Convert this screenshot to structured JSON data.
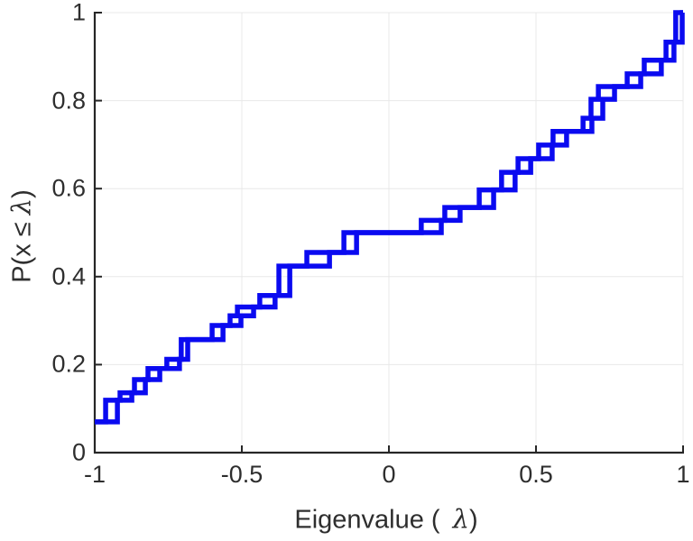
{
  "chart_data": {
    "type": "line",
    "subtype": "empirical-cdf-staircase",
    "title": "",
    "xlabel_prefix": "Eigenvalue (",
    "xlabel_symbol": "λ",
    "xlabel_suffix": ")",
    "ylabel_prefix": "P(x ≤ ",
    "ylabel_symbol": "λ",
    "ylabel_suffix": ")",
    "xlim": [
      -1,
      1
    ],
    "ylim": [
      0,
      1
    ],
    "grid": true,
    "legend_position": "none",
    "x_ticks": [
      {
        "value": -1,
        "label": "-1"
      },
      {
        "value": -0.5,
        "label": "-0.5"
      },
      {
        "value": 0,
        "label": "0"
      },
      {
        "value": 0.5,
        "label": "0.5"
      },
      {
        "value": 1,
        "label": "1"
      }
    ],
    "y_ticks": [
      {
        "value": 0,
        "label": "0"
      },
      {
        "value": 0.2,
        "label": "0.2"
      },
      {
        "value": 0.4,
        "label": "0.4"
      },
      {
        "value": 0.6,
        "label": "0.6"
      },
      {
        "value": 0.8,
        "label": "0.8"
      },
      {
        "value": 1,
        "label": "1"
      }
    ],
    "start_level": 0.07,
    "events": [
      {
        "pair": [
          -0.963,
          -0.923
        ],
        "F": 0.119
      },
      {
        "pair": [
          -0.914,
          -0.874
        ],
        "F": 0.136
      },
      {
        "pair": [
          -0.865,
          -0.828
        ],
        "F": 0.166
      },
      {
        "pair": [
          -0.819,
          -0.779
        ],
        "F": 0.191
      },
      {
        "pair": [
          -0.755,
          -0.712
        ],
        "F": 0.212
      },
      {
        "pair": [
          -0.706,
          -0.684
        ],
        "F": 0.257
      },
      {
        "pair": [
          -0.601,
          -0.564
        ],
        "F": 0.289
      },
      {
        "pair": [
          -0.54,
          -0.503
        ],
        "F": 0.311
      },
      {
        "pair": [
          -0.515,
          -0.46
        ],
        "F": 0.331
      },
      {
        "pair": [
          -0.439,
          -0.387
        ],
        "F": 0.357
      },
      {
        "pair": [
          -0.374,
          -0.337
        ],
        "F": 0.424
      },
      {
        "pair": [
          -0.279,
          -0.202
        ],
        "F": 0.455
      },
      {
        "pair": [
          -0.153,
          -0.11
        ],
        "F": 0.5
      },
      {
        "pair": [
          0.11,
          0.178
        ],
        "F": 0.528
      },
      {
        "pair": [
          0.19,
          0.242
        ],
        "F": 0.557
      },
      {
        "pair": [
          0.307,
          0.356
        ],
        "F": 0.597
      },
      {
        "pair": [
          0.383,
          0.429
        ],
        "F": 0.637
      },
      {
        "pair": [
          0.439,
          0.482
        ],
        "F": 0.668
      },
      {
        "pair": [
          0.509,
          0.555
        ],
        "F": 0.699
      },
      {
        "pair": [
          0.558,
          0.604
        ],
        "F": 0.73
      },
      {
        "pair": [
          0.66,
          0.69
        ],
        "F": 0.76
      },
      {
        "pair": [
          0.687,
          0.727
        ],
        "F": 0.803
      },
      {
        "pair": [
          0.712,
          0.767
        ],
        "F": 0.832
      },
      {
        "pair": [
          0.81,
          0.856
        ],
        "F": 0.861
      },
      {
        "pair": [
          0.868,
          0.926
        ],
        "F": 0.892
      },
      {
        "pair": [
          0.942,
          0.969
        ],
        "F": 0.933
      },
      {
        "pair": [
          0.975,
          0.997
        ],
        "F": 1.0
      }
    ],
    "colors": {
      "line": "#0a0af0",
      "axis": "#262626",
      "grid": "#e8e8e8",
      "text": "#2e2e2e",
      "background": "#ffffff"
    }
  }
}
